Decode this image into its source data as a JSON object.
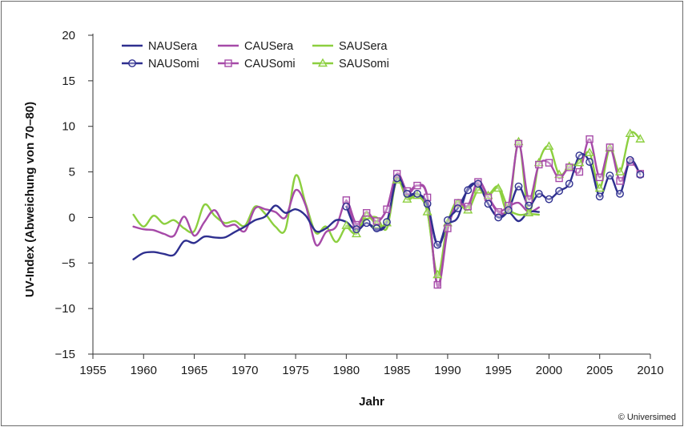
{
  "copyright": "© Universimed",
  "chart_data": {
    "type": "line",
    "xlabel": "Jahr",
    "ylabel": "UV-Index (Abweichung von 70–80)",
    "xlim": [
      1955,
      2010
    ],
    "ylim": [
      -15,
      20
    ],
    "xticks": [
      1955,
      1960,
      1965,
      1970,
      1975,
      1980,
      1985,
      1990,
      1995,
      2000,
      2005,
      2010
    ],
    "yticks": [
      20,
      15,
      10,
      5,
      0,
      -5,
      -10,
      -15
    ],
    "ytick_labels": [
      "20",
      "15",
      "10",
      "5",
      "0",
      "−5",
      "−10",
      "−15"
    ],
    "grid": false,
    "legend_position": "top-left",
    "colors": {
      "NAU": "#2e2f8f",
      "CAU": "#a64aa8",
      "SAU": "#8ccf3f"
    },
    "series": [
      {
        "name": "NAUSera",
        "color": "#2e2f8f",
        "marker": "none",
        "x": [
          1959,
          1960,
          1961,
          1962,
          1963,
          1964,
          1965,
          1966,
          1967,
          1968,
          1969,
          1970,
          1971,
          1972,
          1973,
          1974,
          1975,
          1976,
          1977,
          1978,
          1979,
          1980,
          1981,
          1982,
          1983,
          1984,
          1985,
          1986,
          1987,
          1988,
          1989,
          1990,
          1991,
          1992,
          1993,
          1994,
          1995,
          1996,
          1997,
          1998,
          1999
        ],
        "y": [
          -4.6,
          -3.9,
          -3.8,
          -4.0,
          -4.1,
          -2.6,
          -2.8,
          -2.1,
          -2.2,
          -2.2,
          -1.6,
          -1.0,
          -0.3,
          0.1,
          1.3,
          0.5,
          0.9,
          0.2,
          -1.5,
          -1.2,
          -0.3,
          -0.5,
          -1.4,
          -0.6,
          -1.4,
          -0.6,
          4.2,
          2.4,
          2.6,
          1.3,
          -3.1,
          -0.8,
          0.0,
          3.2,
          3.6,
          1.5,
          0.0,
          0.6,
          -0.4,
          0.6,
          0.6
        ]
      },
      {
        "name": "NAUSomi",
        "color": "#2e2f8f",
        "marker": "circle",
        "x": [
          1980,
          1981,
          1982,
          1983,
          1984,
          1985,
          1986,
          1987,
          1988,
          1989,
          1990,
          1991,
          1992,
          1993,
          1994,
          1995,
          1996,
          1997,
          1998,
          1999,
          2000,
          2001,
          2002,
          2003,
          2004,
          2005,
          2006,
          2007,
          2008,
          2009
        ],
        "y": [
          1.2,
          -1.3,
          -0.6,
          -1.2,
          -0.5,
          4.3,
          2.6,
          2.6,
          1.5,
          -3.0,
          -0.3,
          1.0,
          3.0,
          3.7,
          1.5,
          0.0,
          0.8,
          3.4,
          1.3,
          2.6,
          2.0,
          2.9,
          3.7,
          6.8,
          6.1,
          2.3,
          4.6,
          2.6,
          6.3,
          4.7
        ]
      },
      {
        "name": "CAUSera",
        "color": "#a64aa8",
        "marker": "none",
        "x": [
          1959,
          1960,
          1961,
          1962,
          1963,
          1964,
          1965,
          1966,
          1967,
          1968,
          1969,
          1970,
          1971,
          1972,
          1973,
          1974,
          1975,
          1976,
          1977,
          1978,
          1979,
          1980,
          1981,
          1982,
          1983,
          1984,
          1985,
          1986,
          1987,
          1988,
          1989,
          1990,
          1991,
          1992,
          1993,
          1994,
          1995,
          1996,
          1997,
          1998,
          1999
        ],
        "y": [
          -1.0,
          -1.3,
          -1.4,
          -1.8,
          -2.0,
          0.1,
          -2.0,
          -0.5,
          0.8,
          -0.9,
          -0.8,
          -1.5,
          1.0,
          0.9,
          0.6,
          0.0,
          3.0,
          1.3,
          -3.0,
          -1.6,
          -1.0,
          1.8,
          -0.7,
          0.6,
          -0.5,
          1.0,
          4.8,
          2.6,
          3.5,
          2.3,
          -7.6,
          -1.4,
          1.6,
          1.3,
          4.0,
          2.3,
          0.7,
          1.2,
          1.6,
          0.6,
          1.1
        ]
      },
      {
        "name": "CAUSomi",
        "color": "#a64aa8",
        "marker": "square",
        "x": [
          1980,
          1981,
          1982,
          1983,
          1984,
          1985,
          1986,
          1987,
          1988,
          1989,
          1990,
          1991,
          1992,
          1993,
          1994,
          1995,
          1996,
          1997,
          1998,
          1999,
          2000,
          2001,
          2002,
          2003,
          2004,
          2005,
          2006,
          2007,
          2008,
          2009
        ],
        "y": [
          1.9,
          -0.8,
          0.5,
          -0.4,
          0.9,
          4.8,
          2.9,
          3.5,
          2.2,
          -7.4,
          -1.2,
          1.6,
          1.2,
          3.9,
          2.2,
          0.6,
          1.3,
          8.1,
          2.0,
          5.8,
          6.0,
          4.3,
          5.5,
          5.0,
          8.6,
          4.4,
          7.7,
          4.0,
          6.1,
          4.8
        ]
      },
      {
        "name": "SAUSera",
        "color": "#8ccf3f",
        "marker": "none",
        "x": [
          1959,
          1960,
          1961,
          1962,
          1963,
          1964,
          1965,
          1966,
          1967,
          1968,
          1969,
          1970,
          1971,
          1972,
          1973,
          1974,
          1975,
          1976,
          1977,
          1978,
          1979,
          1980,
          1981,
          1982,
          1983,
          1984,
          1985,
          1986,
          1987,
          1988,
          1989,
          1990,
          1991,
          1992,
          1993,
          1994,
          1995,
          1996,
          1997,
          1998,
          1999
        ],
        "y": [
          0.3,
          -1.0,
          0.2,
          -0.7,
          -0.3,
          -1.2,
          -1.5,
          1.4,
          0.2,
          -0.6,
          -0.4,
          -0.9,
          1.2,
          0.4,
          -1.0,
          -1.3,
          4.6,
          1.5,
          -1.7,
          -1.0,
          -2.7,
          -1.0,
          -1.2,
          -0.2,
          0.0,
          -1.2,
          4.3,
          2.2,
          2.6,
          0.6,
          -6.5,
          -0.7,
          1.9,
          0.8,
          3.0,
          2.5,
          3.4,
          1.0,
          0.3,
          0.4,
          0.3
        ]
      },
      {
        "name": "SAUSomi",
        "color": "#8ccf3f",
        "marker": "triangle",
        "x": [
          1980,
          1981,
          1982,
          1983,
          1984,
          1985,
          1986,
          1987,
          1988,
          1989,
          1990,
          1991,
          1992,
          1993,
          1994,
          1995,
          1996,
          1997,
          1998,
          1999,
          2000,
          2001,
          2002,
          2003,
          2004,
          2005,
          2006,
          2007,
          2008,
          2009
        ],
        "y": [
          -0.9,
          -1.8,
          0.2,
          -0.8,
          -0.6,
          4.1,
          2.0,
          2.4,
          0.6,
          -6.3,
          -0.6,
          1.5,
          0.8,
          3.0,
          2.4,
          3.2,
          0.8,
          8.3,
          0.5,
          6.0,
          7.8,
          4.7,
          5.6,
          6.0,
          7.1,
          3.2,
          7.6,
          5.0,
          9.2,
          8.6
        ]
      }
    ]
  }
}
